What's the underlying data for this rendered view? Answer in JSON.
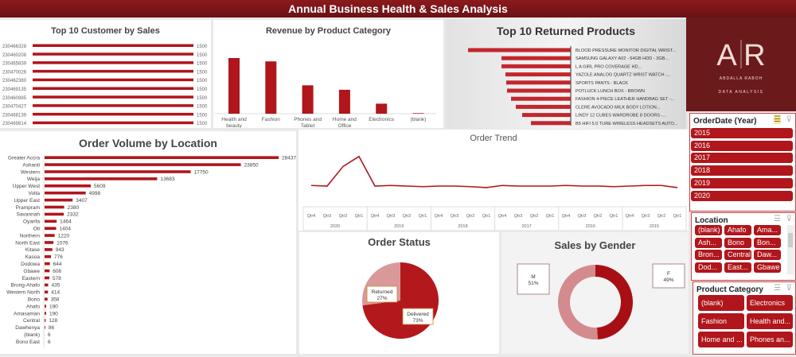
{
  "title": "Annual Business Health & Sales Analysis",
  "colors": {
    "bar": "#b0161b",
    "header": "#7a1518",
    "light": "#d48b8d"
  },
  "logo": {
    "text": "AR",
    "name": "ABDALLA RABOH",
    "tagline": "DATA ANALYSIS"
  },
  "chart_data": [
    {
      "type": "bar",
      "orientation": "horizontal",
      "title": "Top 10 Customer by Sales",
      "categories": [
        "230466328",
        "230460208",
        "230465839",
        "230470026",
        "230462380",
        "230469135",
        "230460985",
        "230470427",
        "230468139",
        "230469814"
      ],
      "values": [
        1500,
        1500,
        1500,
        1500,
        1500,
        1500,
        1500,
        1500,
        1500,
        1500
      ]
    },
    {
      "type": "bar",
      "title": "Revenue by Product Category",
      "categories": [
        "Health and beauty",
        "Fashion",
        "Phones and Tablet",
        "Home and Office",
        "Electronics",
        "(blank)"
      ],
      "values": [
        100,
        94,
        51,
        43,
        18,
        1
      ]
    },
    {
      "type": "bar",
      "orientation": "horizontal",
      "title": "Top 10 Returned Products",
      "categories": [
        "BLOOD PRESSURE MONITOR DIGITAL WRIST...",
        "SAMSUNG GALAXY A02 - 64GB HDD - 3GB...",
        "L A GIRL PRO COVERAGE HD...",
        "YAZOLE ANALOG QUARTZ WRIST WATCH -...",
        "SPORTS PANTS - BLACK",
        "POTLUCK LUNCH BOX - BROWN",
        "FASHION 4-PIECE LEATHER HANDBAG SET -...",
        "CLERE AVOCADO MILK BODY LOTION...",
        "LINDY 12 CUBES WARDROBE 8 DOORS -...",
        "B5 HIFI 5.0 TURE WIRELESS HEADSETS AUTO..."
      ],
      "values": [
        129,
        87,
        87,
        82,
        81,
        80,
        75,
        69,
        61,
        50
      ]
    },
    {
      "type": "bar",
      "orientation": "horizontal",
      "title": "Order Volume by Location",
      "categories": [
        "Greater Accra",
        "Ashanti",
        "Western",
        "Weija",
        "Upper West",
        "Volta",
        "Upper East",
        "Prampram",
        "Savannah",
        "Oyarifa",
        "Oti",
        "Northern",
        "North East",
        "Kitase",
        "Kasoa",
        "Dodowa",
        "Gbawe",
        "Eastern",
        "Brong-Ahafo",
        "Western North",
        "Bono",
        "Ahafo",
        "Amasaman",
        "Central",
        "Dawhenya",
        "(blank)",
        "Bono East"
      ],
      "values": [
        28437,
        23850,
        17750,
        13683,
        5609,
        4998,
        3407,
        2380,
        2332,
        1464,
        1404,
        1220,
        1076,
        943,
        776,
        644,
        606,
        578,
        435,
        414,
        358,
        190,
        190,
        128,
        86,
        6,
        6
      ]
    },
    {
      "type": "line",
      "title": "Order Trend",
      "years": [
        "2020",
        "2019",
        "2018",
        "2017",
        "2016",
        "2015"
      ],
      "quarters": [
        "Qtr4",
        "Qtr3",
        "Qtr2",
        "Qtr1"
      ],
      "values": [
        52,
        50,
        115,
        148,
        50,
        52,
        50,
        48,
        50,
        50,
        48,
        45,
        52,
        50,
        50,
        50,
        52,
        50,
        50,
        48,
        50,
        52,
        52,
        45
      ]
    },
    {
      "type": "pie",
      "title": "Order Status",
      "slices": [
        {
          "label": "Delivered",
          "value": 73,
          "text": "73%"
        },
        {
          "label": "Returned",
          "value": 27,
          "text": "27%"
        }
      ]
    },
    {
      "type": "pie",
      "donut": true,
      "title": "Sales by Gender",
      "slices": [
        {
          "label": "F",
          "value": 49,
          "text": "49%"
        },
        {
          "label": "M",
          "value": 51,
          "text": "51%"
        }
      ]
    }
  ],
  "slicers": {
    "year": {
      "title": "OrderDate (Year)",
      "items": [
        "2015",
        "2016",
        "2017",
        "2018",
        "2019",
        "2020"
      ]
    },
    "location": {
      "title": "Location",
      "items": [
        "(blank)",
        "Ahafo",
        "Ama...",
        "Ash...",
        "Bono",
        "Bon...",
        "Bron...",
        "Central",
        "Daw...",
        "Dod...",
        "East...",
        "Gbawe"
      ]
    },
    "category": {
      "title": "Product Category",
      "items": [
        "(blank)",
        "Electronics",
        "Fashion",
        "Health and...",
        "Home and ...",
        "Phones an..."
      ]
    }
  }
}
